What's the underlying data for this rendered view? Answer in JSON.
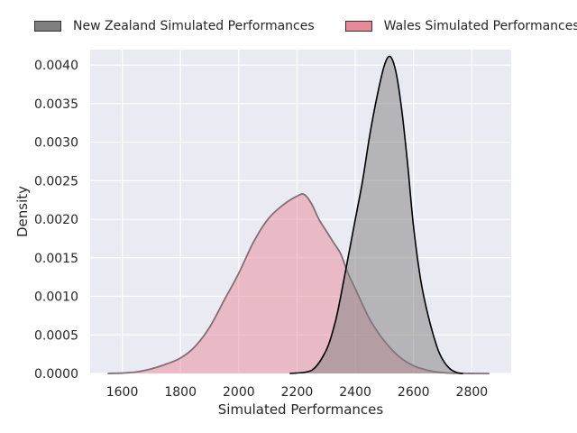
{
  "chart_data": {
    "type": "area",
    "title": "",
    "xlabel": "Simulated Performances",
    "ylabel": "Density",
    "xlim": [
      1490,
      2935
    ],
    "ylim": [
      0,
      0.0042
    ],
    "x_ticks": [
      "1600",
      "1800",
      "2000",
      "2200",
      "2400",
      "2600",
      "2800"
    ],
    "y_ticks": [
      "0.0000",
      "0.0005",
      "0.0010",
      "0.0015",
      "0.0020",
      "0.0025",
      "0.0030",
      "0.0035",
      "0.0040"
    ],
    "grid": true,
    "legend_placement": "top",
    "series": [
      {
        "name": "New Zealand Simulated Performances",
        "color": "#7f7f7f",
        "line_color": "#000000",
        "x": [
          2175,
          2250,
          2300,
          2330,
          2350,
          2375,
          2400,
          2425,
          2450,
          2475,
          2500,
          2520,
          2540,
          2560,
          2580,
          2600,
          2625,
          2650,
          2680,
          2700,
          2725,
          2750,
          2770
        ],
        "y": [
          0.0,
          4e-05,
          0.0003,
          0.00065,
          0.001,
          0.0015,
          0.002,
          0.0025,
          0.0031,
          0.0036,
          0.004,
          0.00411,
          0.0039,
          0.0034,
          0.0027,
          0.0019,
          0.0012,
          0.00075,
          0.00035,
          0.00018,
          6e-05,
          1e-05,
          0.0
        ]
      },
      {
        "name": "Wales Simulated Performances",
        "color": "#e8899a",
        "line_color": "#7f7075",
        "x": [
          1550,
          1600,
          1650,
          1700,
          1750,
          1800,
          1850,
          1900,
          1950,
          2000,
          2050,
          2100,
          2150,
          2200,
          2225,
          2250,
          2275,
          2300,
          2325,
          2350,
          2375,
          2400,
          2450,
          2500,
          2550,
          2600,
          2650,
          2700,
          2750,
          2800,
          2860
        ],
        "y": [
          0.0,
          5e-06,
          2e-05,
          6e-05,
          0.00012,
          0.0002,
          0.00035,
          0.0006,
          0.00095,
          0.0013,
          0.0017,
          0.002,
          0.00218,
          0.0023,
          0.00232,
          0.0022,
          0.002,
          0.00185,
          0.0017,
          0.00155,
          0.0013,
          0.0011,
          0.0007,
          0.00042,
          0.00022,
          0.0001,
          4e-05,
          1e-05,
          3e-06,
          5e-07,
          0.0
        ]
      }
    ]
  }
}
